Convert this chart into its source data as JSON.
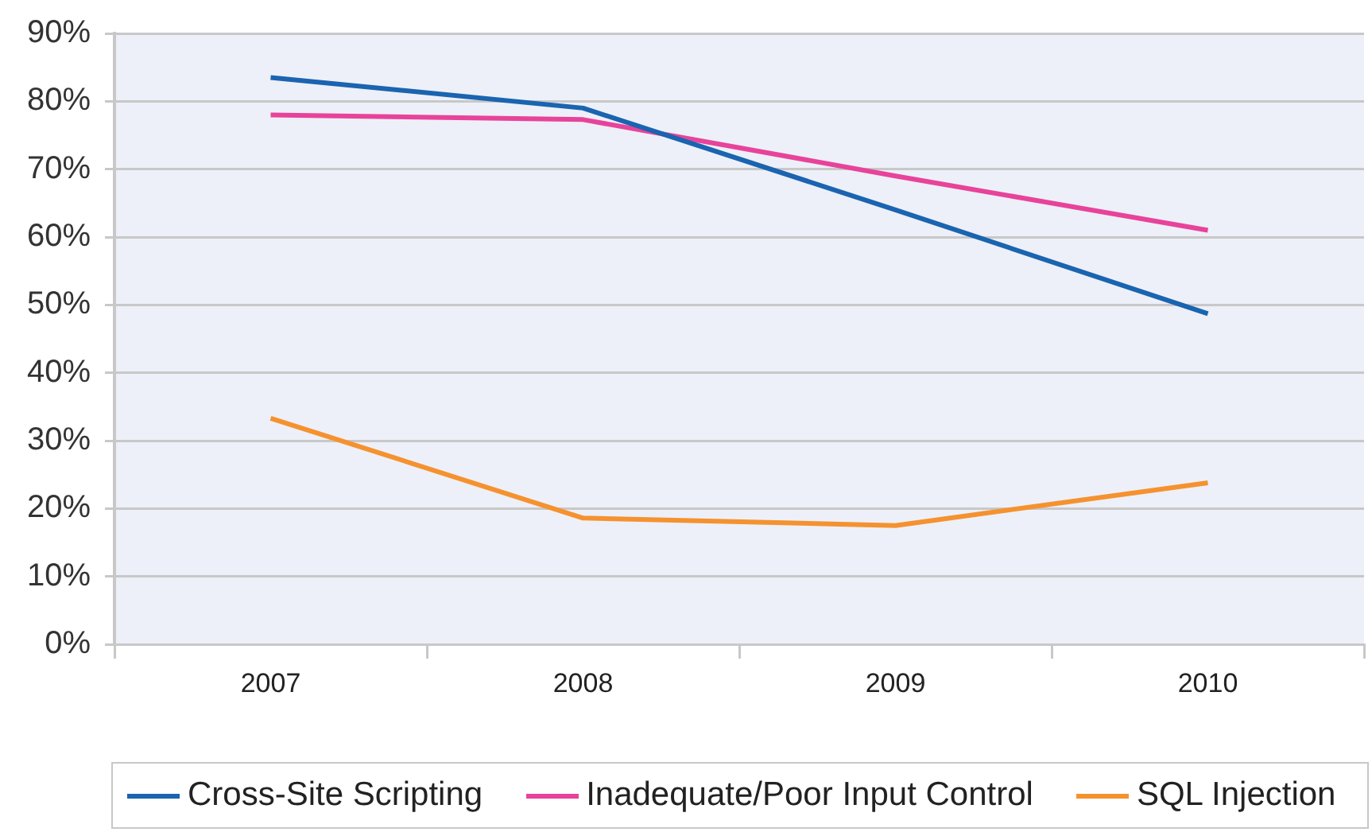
{
  "chart_data": {
    "type": "line",
    "categories": [
      "2007",
      "2008",
      "2009",
      "2010"
    ],
    "series": [
      {
        "name": "Cross-Site Scripting",
        "color": "#1a64b0",
        "values": [
          83.5,
          79,
          64,
          48.7
        ]
      },
      {
        "name": "Inadequate/Poor Input Control",
        "color": "#e8439a",
        "values": [
          78,
          77.3,
          69,
          61
        ]
      },
      {
        "name": "SQL Injection",
        "color": "#f5922f",
        "values": [
          33.3,
          18.6,
          17.5,
          23.8
        ]
      }
    ],
    "ylim": [
      0,
      90
    ],
    "yticks": [
      {
        "value": 0,
        "label": "0%"
      },
      {
        "value": 10,
        "label": "10%"
      },
      {
        "value": 20,
        "label": "20%"
      },
      {
        "value": 30,
        "label": "30%"
      },
      {
        "value": 40,
        "label": "40%"
      },
      {
        "value": 50,
        "label": "50%"
      },
      {
        "value": 60,
        "label": "60%"
      },
      {
        "value": 70,
        "label": "70%"
      },
      {
        "value": 80,
        "label": "80%"
      },
      {
        "value": 90,
        "label": "90%"
      }
    ],
    "grid": "y",
    "legend": "bottom",
    "marker": "none"
  }
}
